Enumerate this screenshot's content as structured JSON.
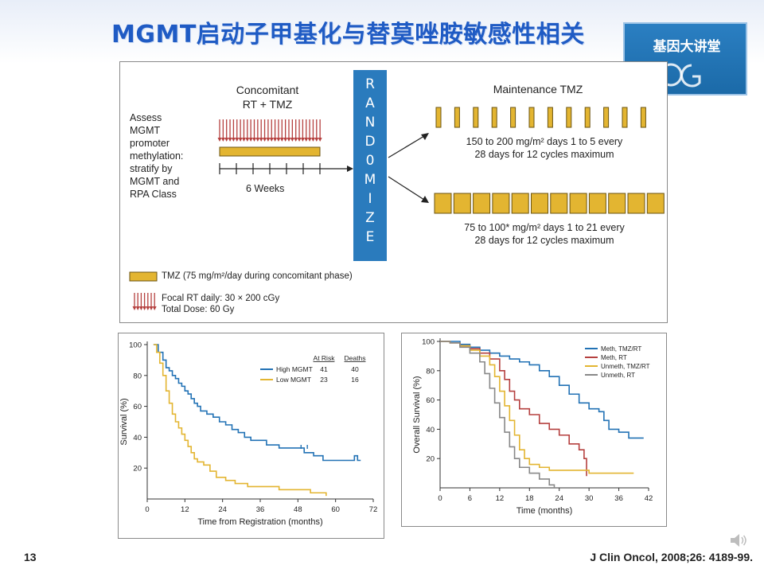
{
  "slide": {
    "title": "MGMT启动子甲基化与替莫唑胺敏感性相关",
    "logo_text": "基因大讲堂",
    "number": "13",
    "citation": "J Clin Oncol, 2008;26: 4189-99."
  },
  "design": {
    "assess_lines": [
      "Assess",
      "MGMT",
      "promoter",
      "methylation:",
      "stratify by",
      "MGMT and",
      "RPA Class"
    ],
    "concomitant_line1": "Concomitant",
    "concomitant_line2": "RT + TMZ",
    "weeks_label": "6 Weeks",
    "randomize_letters": [
      "R",
      "A",
      "N",
      "D",
      "0",
      "M",
      "I",
      "Z",
      "E"
    ],
    "maintenance_title": "Maintenance TMZ",
    "arm1_line1": "150 to 200 mg/m² days 1 to 5 every",
    "arm1_line2": "28 days for 12 cycles maximum",
    "arm2_line1": "75 to 100* mg/m² days 1 to 21 every",
    "arm2_line2": "28 days for 12 cycles maximum",
    "legend_tmz": "TMZ (75 mg/m²/day during concomitant phase)",
    "legend_rt_line1": "Focal RT daily: 30 × 200 cGy",
    "legend_rt_line2": "Total Dose: 60 Gy",
    "colors": {
      "tmz": "#e3b531",
      "rt": "#b5403f",
      "randomize": "#2a7bbd"
    }
  },
  "chart_data": [
    {
      "type": "line",
      "title": "",
      "xlabel": "Time from Registration (months)",
      "ylabel": "Survival (%)",
      "xlim": [
        0,
        72
      ],
      "ylim": [
        0,
        100
      ],
      "xticks": [
        0,
        12,
        24,
        36,
        48,
        60,
        72
      ],
      "yticks": [
        20,
        40,
        60,
        80,
        100
      ],
      "legend_position": "top-right",
      "table_headers": [
        "At Risk",
        "Deaths"
      ],
      "series": [
        {
          "name": "High MGMT",
          "color": "#2272b5",
          "at_risk": "41",
          "deaths": "40",
          "points": [
            [
              2,
              100
            ],
            [
              3,
              100
            ],
            [
              3.5,
              95
            ],
            [
              5,
              90
            ],
            [
              6,
              85
            ],
            [
              7,
              83
            ],
            [
              8,
              80
            ],
            [
              9,
              78
            ],
            [
              10,
              75
            ],
            [
              11,
              73
            ],
            [
              12,
              70
            ],
            [
              13,
              68
            ],
            [
              14,
              65
            ],
            [
              15,
              62
            ],
            [
              16,
              60
            ],
            [
              17,
              57
            ],
            [
              19,
              55
            ],
            [
              21,
              53
            ],
            [
              23,
              50
            ],
            [
              25,
              48
            ],
            [
              27,
              45
            ],
            [
              29,
              43
            ],
            [
              31,
              40
            ],
            [
              33,
              38
            ],
            [
              36,
              38
            ],
            [
              38,
              35
            ],
            [
              42,
              33
            ],
            [
              46,
              33
            ],
            [
              50,
              30
            ],
            [
              53,
              28
            ],
            [
              56,
              25
            ],
            [
              60,
              25
            ],
            [
              64,
              25
            ],
            [
              66,
              28
            ],
            [
              67,
              25
            ],
            [
              68,
              25
            ]
          ]
        },
        {
          "name": "Low MGMT",
          "color": "#e3b531",
          "at_risk": "23",
          "deaths": "16",
          "points": [
            [
              2,
              100
            ],
            [
              3,
              95
            ],
            [
              4,
              88
            ],
            [
              5,
              80
            ],
            [
              6,
              70
            ],
            [
              7,
              62
            ],
            [
              8,
              55
            ],
            [
              9,
              50
            ],
            [
              10,
              46
            ],
            [
              11,
              42
            ],
            [
              12,
              38
            ],
            [
              13,
              34
            ],
            [
              14,
              30
            ],
            [
              15,
              26
            ],
            [
              16,
              24
            ],
            [
              18,
              22
            ],
            [
              20,
              18
            ],
            [
              22,
              14
            ],
            [
              25,
              12
            ],
            [
              28,
              10
            ],
            [
              32,
              8
            ],
            [
              38,
              8
            ],
            [
              42,
              6
            ],
            [
              48,
              6
            ],
            [
              52,
              4
            ],
            [
              55,
              4
            ],
            [
              57,
              2
            ]
          ]
        }
      ]
    },
    {
      "type": "line",
      "title": "",
      "xlabel": "Time (months)",
      "ylabel": "Overall Survival (%)",
      "xlim": [
        0,
        42
      ],
      "ylim": [
        0,
        100
      ],
      "xticks": [
        0,
        6,
        12,
        18,
        24,
        30,
        36,
        42
      ],
      "yticks": [
        20,
        40,
        60,
        80,
        100
      ],
      "legend_position": "top-right",
      "series": [
        {
          "name": "Meth, TMZ/RT",
          "color": "#2272b5",
          "points": [
            [
              0,
              100
            ],
            [
              2,
              100
            ],
            [
              4,
              98
            ],
            [
              6,
              96
            ],
            [
              8,
              94
            ],
            [
              10,
              92
            ],
            [
              12,
              90
            ],
            [
              14,
              88
            ],
            [
              16,
              86
            ],
            [
              18,
              84
            ],
            [
              20,
              80
            ],
            [
              22,
              76
            ],
            [
              24,
              70
            ],
            [
              26,
              64
            ],
            [
              28,
              58
            ],
            [
              30,
              54
            ],
            [
              32,
              52
            ],
            [
              33,
              46
            ],
            [
              34,
              40
            ],
            [
              36,
              38
            ],
            [
              38,
              34
            ],
            [
              41,
              34
            ]
          ]
        },
        {
          "name": "Meth, RT",
          "color": "#b5403f",
          "points": [
            [
              0,
              100
            ],
            [
              2,
              99
            ],
            [
              4,
              97
            ],
            [
              6,
              95
            ],
            [
              8,
              92
            ],
            [
              10,
              88
            ],
            [
              12,
              80
            ],
            [
              13,
              74
            ],
            [
              14,
              66
            ],
            [
              15,
              60
            ],
            [
              16,
              54
            ],
            [
              18,
              50
            ],
            [
              20,
              44
            ],
            [
              22,
              40
            ],
            [
              24,
              36
            ],
            [
              26,
              30
            ],
            [
              28,
              26
            ],
            [
              29,
              20
            ],
            [
              29.5,
              8
            ]
          ]
        },
        {
          "name": "Unmeth, TMZ/RT",
          "color": "#e3b531",
          "points": [
            [
              0,
              100
            ],
            [
              2,
              99
            ],
            [
              4,
              97
            ],
            [
              6,
              94
            ],
            [
              8,
              90
            ],
            [
              10,
              84
            ],
            [
              11,
              76
            ],
            [
              12,
              66
            ],
            [
              13,
              56
            ],
            [
              14,
              46
            ],
            [
              15,
              36
            ],
            [
              16,
              26
            ],
            [
              17,
              20
            ],
            [
              18,
              16
            ],
            [
              20,
              14
            ],
            [
              22,
              12
            ],
            [
              24,
              12
            ],
            [
              28,
              12
            ],
            [
              30,
              10
            ],
            [
              34,
              10
            ],
            [
              39,
              10
            ]
          ]
        },
        {
          "name": "Unmeth, RT",
          "color": "#888888",
          "points": [
            [
              0,
              100
            ],
            [
              2,
              99
            ],
            [
              4,
              96
            ],
            [
              6,
              92
            ],
            [
              8,
              86
            ],
            [
              9,
              78
            ],
            [
              10,
              68
            ],
            [
              11,
              58
            ],
            [
              12,
              48
            ],
            [
              13,
              38
            ],
            [
              14,
              28
            ],
            [
              15,
              20
            ],
            [
              16,
              14
            ],
            [
              18,
              10
            ],
            [
              20,
              6
            ],
            [
              22,
              2
            ],
            [
              23,
              0
            ]
          ]
        }
      ]
    }
  ]
}
